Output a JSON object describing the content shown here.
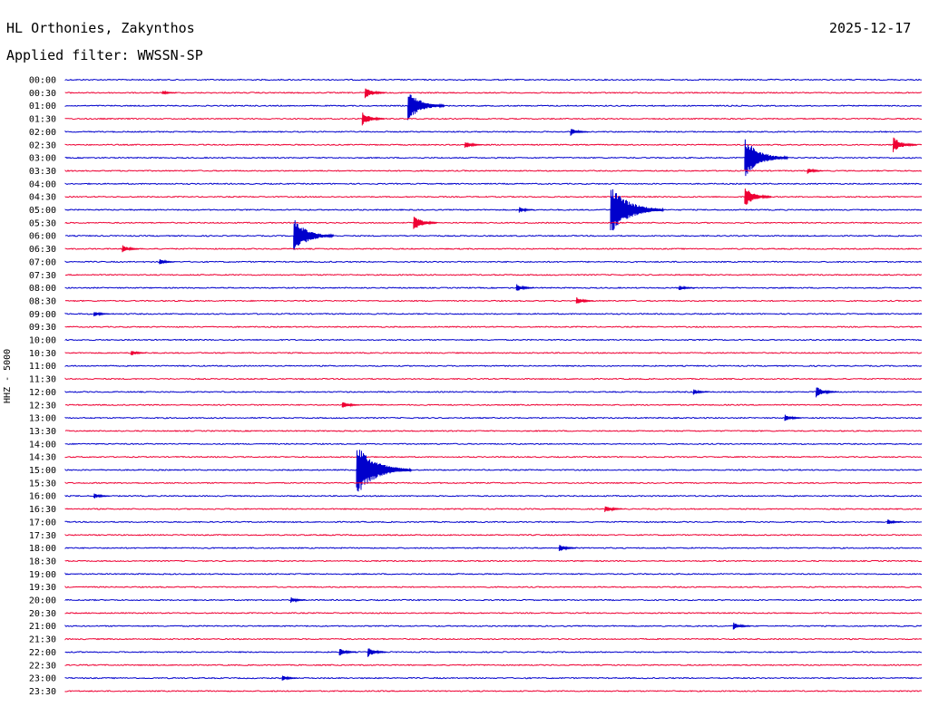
{
  "header": {
    "station": "HL Orthonies, Zakynthos",
    "date": "2025-12-17",
    "filter": "Applied filter: WWSSN-SP"
  },
  "axis": {
    "channel_label": "HHZ - 5000"
  },
  "colors": {
    "blue": "#0000cc",
    "red": "#ee0033",
    "background": "#ffffff"
  },
  "chart_data": {
    "type": "line",
    "title": "",
    "ylabel": "HHZ - 5000",
    "row_labels": [
      "00:00",
      "00:30",
      "01:00",
      "01:30",
      "02:00",
      "02:30",
      "03:00",
      "03:30",
      "04:00",
      "04:30",
      "05:00",
      "05:30",
      "06:00",
      "06:30",
      "07:00",
      "07:30",
      "08:00",
      "08:30",
      "09:00",
      "09:30",
      "10:00",
      "10:30",
      "11:00",
      "11:30",
      "12:00",
      "12:30",
      "13:00",
      "13:30",
      "14:00",
      "14:30",
      "15:00",
      "15:30",
      "16:00",
      "16:30",
      "17:00",
      "17:30",
      "18:00",
      "18:30",
      "19:00",
      "19:30",
      "20:00",
      "20:30",
      "21:00",
      "21:30",
      "22:00",
      "22:30",
      "23:00",
      "23:30"
    ],
    "row_colors": [
      "blue",
      "red"
    ],
    "events": [
      {
        "row": "00:30",
        "minute": 10.5,
        "amp": 0.6
      },
      {
        "row": "00:30",
        "minute": 3.4,
        "amp": 0.2
      },
      {
        "row": "01:00",
        "minute": 12.0,
        "amp": 1.6
      },
      {
        "row": "01:30",
        "minute": 10.4,
        "amp": 0.7
      },
      {
        "row": "02:00",
        "minute": 17.7,
        "amp": 0.4
      },
      {
        "row": "02:30",
        "minute": 14.0,
        "amp": 0.4
      },
      {
        "row": "02:30",
        "minute": 29.0,
        "amp": 0.8
      },
      {
        "row": "03:00",
        "minute": 23.8,
        "amp": 2.0
      },
      {
        "row": "03:30",
        "minute": 26.0,
        "amp": 0.3
      },
      {
        "row": "05:00",
        "minute": 15.9,
        "amp": 0.3
      },
      {
        "row": "05:00",
        "minute": 19.1,
        "amp": 2.6
      },
      {
        "row": "04:30",
        "minute": 23.8,
        "amp": 1.0
      },
      {
        "row": "05:30",
        "minute": 12.2,
        "amp": 0.8
      },
      {
        "row": "06:00",
        "minute": 8.0,
        "amp": 1.8
      },
      {
        "row": "06:30",
        "minute": 2.0,
        "amp": 0.4
      },
      {
        "row": "07:00",
        "minute": 3.3,
        "amp": 0.3
      },
      {
        "row": "08:00",
        "minute": 15.8,
        "amp": 0.4
      },
      {
        "row": "08:00",
        "minute": 21.5,
        "amp": 0.3
      },
      {
        "row": "08:30",
        "minute": 17.9,
        "amp": 0.4
      },
      {
        "row": "09:00",
        "minute": 1.0,
        "amp": 0.3
      },
      {
        "row": "10:30",
        "minute": 2.3,
        "amp": 0.3
      },
      {
        "row": "12:00",
        "minute": 22.0,
        "amp": 0.3
      },
      {
        "row": "12:00",
        "minute": 26.3,
        "amp": 0.6
      },
      {
        "row": "12:30",
        "minute": 9.7,
        "amp": 0.4
      },
      {
        "row": "13:00",
        "minute": 25.2,
        "amp": 0.4
      },
      {
        "row": "15:00",
        "minute": 10.2,
        "amp": 2.7
      },
      {
        "row": "16:00",
        "minute": 1.0,
        "amp": 0.3
      },
      {
        "row": "16:30",
        "minute": 18.9,
        "amp": 0.4
      },
      {
        "row": "17:00",
        "minute": 28.8,
        "amp": 0.3
      },
      {
        "row": "18:00",
        "minute": 17.3,
        "amp": 0.4
      },
      {
        "row": "20:00",
        "minute": 7.9,
        "amp": 0.3
      },
      {
        "row": "21:00",
        "minute": 23.4,
        "amp": 0.4
      },
      {
        "row": "22:00",
        "minute": 9.6,
        "amp": 0.4
      },
      {
        "row": "22:00",
        "minute": 10.6,
        "amp": 0.5
      },
      {
        "row": "23:00",
        "minute": 7.6,
        "amp": 0.3
      }
    ]
  }
}
